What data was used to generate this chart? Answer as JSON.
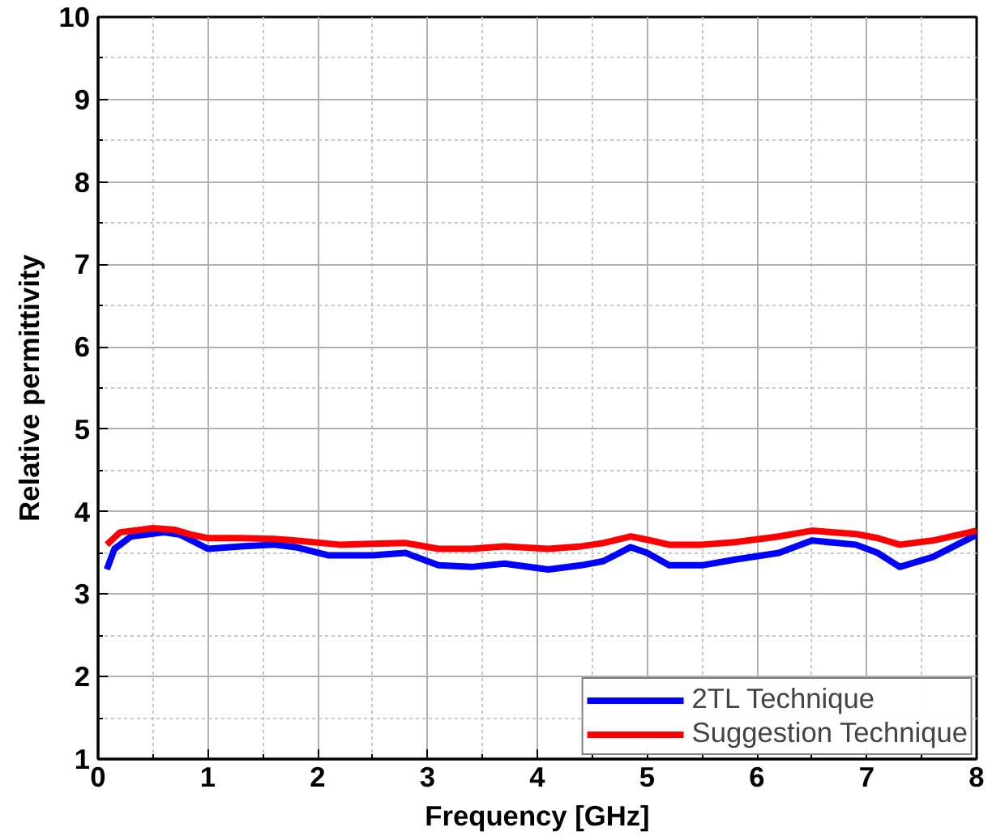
{
  "chart_data": {
    "type": "line",
    "xlabel": "Frequency [GHz]",
    "ylabel": "Relative permittivity",
    "xlim": [
      0,
      8
    ],
    "ylim": [
      1,
      10
    ],
    "xticks": [
      0,
      1,
      2,
      3,
      4,
      5,
      6,
      7,
      8
    ],
    "yticks": [
      1,
      2,
      3,
      4,
      5,
      6,
      7,
      8,
      9,
      10
    ],
    "grid": true,
    "legend": "bottom right",
    "line_style": "solid",
    "series": [
      {
        "name": "2TL Technique",
        "color": "#0000ff",
        "x": [
          0.08,
          0.15,
          0.3,
          0.6,
          0.75,
          1.0,
          1.3,
          1.6,
          1.8,
          2.1,
          2.5,
          2.8,
          3.1,
          3.4,
          3.7,
          4.1,
          4.4,
          4.6,
          4.85,
          5.0,
          5.2,
          5.5,
          5.8,
          6.2,
          6.5,
          6.9,
          7.1,
          7.3,
          7.6,
          8.0
        ],
        "values": [
          3.3,
          3.55,
          3.7,
          3.75,
          3.72,
          3.55,
          3.58,
          3.6,
          3.57,
          3.47,
          3.47,
          3.5,
          3.35,
          3.33,
          3.37,
          3.3,
          3.35,
          3.4,
          3.57,
          3.5,
          3.35,
          3.35,
          3.42,
          3.5,
          3.65,
          3.6,
          3.5,
          3.33,
          3.45,
          3.72
        ]
      },
      {
        "name": "Suggestion Technique",
        "color": "#ff0000",
        "x": [
          0.08,
          0.2,
          0.5,
          0.7,
          0.85,
          1.0,
          1.3,
          1.6,
          1.8,
          2.2,
          2.5,
          2.8,
          3.1,
          3.4,
          3.7,
          4.1,
          4.4,
          4.6,
          4.85,
          5.0,
          5.2,
          5.5,
          5.8,
          6.2,
          6.5,
          6.9,
          7.1,
          7.3,
          7.6,
          8.0
        ],
        "values": [
          3.6,
          3.75,
          3.8,
          3.78,
          3.72,
          3.68,
          3.68,
          3.67,
          3.65,
          3.6,
          3.61,
          3.62,
          3.55,
          3.55,
          3.58,
          3.55,
          3.58,
          3.62,
          3.7,
          3.66,
          3.6,
          3.6,
          3.63,
          3.7,
          3.77,
          3.73,
          3.68,
          3.6,
          3.65,
          3.77
        ]
      }
    ]
  }
}
